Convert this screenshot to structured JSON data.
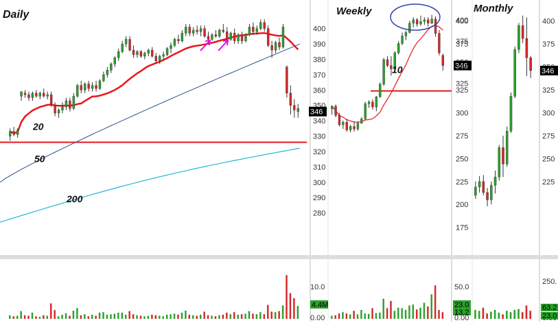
{
  "colors": {
    "up": "#2ca02c",
    "down": "#d62728",
    "ma_red": "#e8151b",
    "ma_blue": "#2b4f8a",
    "ma_cyan": "#26b6d6",
    "support": "#e8151b",
    "arrow": "#e010e0",
    "ellipse": "#2d3fa8"
  },
  "chart_data": [
    {
      "type": "candlestick",
      "title": "Daily",
      "y_ticks": [
        280,
        290,
        300,
        310,
        320,
        330,
        340,
        350,
        360,
        370,
        380,
        390,
        400
      ],
      "ylim": [
        270,
        407
      ],
      "last_price_label": "346",
      "support_level": 326,
      "annotations": [
        {
          "text": "20",
          "x": 58,
          "y": 334
        },
        {
          "text": "50",
          "x": 58,
          "y": 313
        },
        {
          "text": "200",
          "x": 112,
          "y": 287
        }
      ],
      "candles": [
        {
          "o": 330,
          "h": 335,
          "l": 327,
          "c": 333
        },
        {
          "o": 333,
          "h": 336,
          "l": 330,
          "c": 331
        },
        {
          "o": 331,
          "h": 335,
          "l": 329,
          "c": 334
        },
        {
          "o": 356,
          "h": 358,
          "l": 353,
          "c": 359
        },
        {
          "o": 358,
          "h": 360,
          "l": 355,
          "c": 357
        },
        {
          "o": 357,
          "h": 359,
          "l": 353,
          "c": 355
        },
        {
          "o": 355,
          "h": 359,
          "l": 353,
          "c": 358
        },
        {
          "o": 358,
          "h": 360,
          "l": 355,
          "c": 356
        },
        {
          "o": 356,
          "h": 359,
          "l": 354,
          "c": 358
        },
        {
          "o": 358,
          "h": 361,
          "l": 355,
          "c": 356
        },
        {
          "o": 356,
          "h": 359,
          "l": 354,
          "c": 357
        },
        {
          "o": 357,
          "h": 359,
          "l": 349,
          "c": 351
        },
        {
          "o": 350,
          "h": 352,
          "l": 343,
          "c": 345
        },
        {
          "o": 345,
          "h": 348,
          "l": 342,
          "c": 347
        },
        {
          "o": 347,
          "h": 352,
          "l": 345,
          "c": 349
        },
        {
          "o": 349,
          "h": 355,
          "l": 347,
          "c": 353
        },
        {
          "o": 353,
          "h": 355,
          "l": 346,
          "c": 348
        },
        {
          "o": 348,
          "h": 358,
          "l": 347,
          "c": 356
        },
        {
          "o": 356,
          "h": 364,
          "l": 355,
          "c": 363
        },
        {
          "o": 363,
          "h": 366,
          "l": 358,
          "c": 360
        },
        {
          "o": 360,
          "h": 365,
          "l": 358,
          "c": 364
        },
        {
          "o": 364,
          "h": 366,
          "l": 359,
          "c": 361
        },
        {
          "o": 361,
          "h": 365,
          "l": 359,
          "c": 363
        },
        {
          "o": 363,
          "h": 366,
          "l": 359,
          "c": 361
        },
        {
          "o": 361,
          "h": 367,
          "l": 360,
          "c": 366
        },
        {
          "o": 366,
          "h": 372,
          "l": 365,
          "c": 370
        },
        {
          "o": 370,
          "h": 375,
          "l": 368,
          "c": 373
        },
        {
          "o": 373,
          "h": 378,
          "l": 371,
          "c": 377
        },
        {
          "o": 377,
          "h": 382,
          "l": 375,
          "c": 381
        },
        {
          "o": 381,
          "h": 387,
          "l": 379,
          "c": 385
        },
        {
          "o": 385,
          "h": 392,
          "l": 384,
          "c": 390
        },
        {
          "o": 390,
          "h": 395,
          "l": 388,
          "c": 393
        },
        {
          "o": 393,
          "h": 395,
          "l": 385,
          "c": 386
        },
        {
          "o": 386,
          "h": 389,
          "l": 381,
          "c": 383
        },
        {
          "o": 383,
          "h": 386,
          "l": 381,
          "c": 385
        },
        {
          "o": 385,
          "h": 386,
          "l": 381,
          "c": 382
        },
        {
          "o": 382,
          "h": 385,
          "l": 380,
          "c": 384
        },
        {
          "o": 384,
          "h": 387,
          "l": 382,
          "c": 386
        },
        {
          "o": 386,
          "h": 388,
          "l": 381,
          "c": 382
        },
        {
          "o": 382,
          "h": 384,
          "l": 377,
          "c": 379
        },
        {
          "o": 379,
          "h": 383,
          "l": 377,
          "c": 382
        },
        {
          "o": 382,
          "h": 385,
          "l": 380,
          "c": 383
        },
        {
          "o": 383,
          "h": 388,
          "l": 382,
          "c": 387
        },
        {
          "o": 387,
          "h": 391,
          "l": 384,
          "c": 389
        },
        {
          "o": 389,
          "h": 394,
          "l": 388,
          "c": 393
        },
        {
          "o": 393,
          "h": 396,
          "l": 390,
          "c": 392
        },
        {
          "o": 392,
          "h": 399,
          "l": 391,
          "c": 397
        },
        {
          "o": 397,
          "h": 403,
          "l": 395,
          "c": 401
        },
        {
          "o": 401,
          "h": 403,
          "l": 395,
          "c": 397
        },
        {
          "o": 397,
          "h": 401,
          "l": 395,
          "c": 399
        },
        {
          "o": 399,
          "h": 402,
          "l": 396,
          "c": 398
        },
        {
          "o": 398,
          "h": 402,
          "l": 395,
          "c": 400
        },
        {
          "o": 400,
          "h": 402,
          "l": 394,
          "c": 395
        },
        {
          "o": 395,
          "h": 398,
          "l": 391,
          "c": 393
        },
        {
          "o": 393,
          "h": 397,
          "l": 392,
          "c": 396
        },
        {
          "o": 396,
          "h": 399,
          "l": 394,
          "c": 395
        },
        {
          "o": 395,
          "h": 400,
          "l": 394,
          "c": 399
        },
        {
          "o": 399,
          "h": 403,
          "l": 397,
          "c": 398
        },
        {
          "o": 398,
          "h": 401,
          "l": 391,
          "c": 393
        },
        {
          "o": 393,
          "h": 398,
          "l": 392,
          "c": 397
        },
        {
          "o": 397,
          "h": 400,
          "l": 390,
          "c": 392
        },
        {
          "o": 392,
          "h": 397,
          "l": 390,
          "c": 396
        },
        {
          "o": 396,
          "h": 398,
          "l": 390,
          "c": 392
        },
        {
          "o": 392,
          "h": 397,
          "l": 391,
          "c": 396
        },
        {
          "o": 396,
          "h": 403,
          "l": 395,
          "c": 401
        },
        {
          "o": 401,
          "h": 404,
          "l": 396,
          "c": 398
        },
        {
          "o": 398,
          "h": 402,
          "l": 396,
          "c": 400
        },
        {
          "o": 400,
          "h": 406,
          "l": 399,
          "c": 404
        },
        {
          "o": 404,
          "h": 406,
          "l": 398,
          "c": 400
        },
        {
          "o": 400,
          "h": 402,
          "l": 388,
          "c": 389
        },
        {
          "o": 389,
          "h": 392,
          "l": 381,
          "c": 386
        },
        {
          "o": 386,
          "h": 392,
          "l": 384,
          "c": 391
        },
        {
          "o": 391,
          "h": 394,
          "l": 386,
          "c": 388
        },
        {
          "o": 388,
          "h": 403,
          "l": 387,
          "c": 401
        },
        {
          "o": 375,
          "h": 376,
          "l": 355,
          "c": 358
        },
        {
          "o": 358,
          "h": 363,
          "l": 344,
          "c": 350
        },
        {
          "o": 350,
          "h": 354,
          "l": 342,
          "c": 347
        },
        {
          "o": 346,
          "h": 351,
          "l": 342,
          "c": 348
        }
      ],
      "volume_y_ticks": [],
      "volume": [
        0.07,
        0.05,
        0.06,
        0.15,
        0.07,
        0.06,
        0.12,
        0.05,
        0.04,
        0.07,
        0.06,
        0.3,
        0.17,
        0.05,
        0.08,
        0.11,
        0.06,
        0.16,
        0.21,
        0.07,
        0.09,
        0.05,
        0.08,
        0.06,
        0.12,
        0.13,
        0.08,
        0.09,
        0.1,
        0.12,
        0.12,
        0.08,
        0.15,
        0.09,
        0.07,
        0.06,
        0.05,
        0.06,
        0.08,
        0.07,
        0.06,
        0.05,
        0.08,
        0.09,
        0.1,
        0.08,
        0.12,
        0.16,
        0.08,
        0.07,
        0.06,
        0.08,
        0.14,
        0.07,
        0.06,
        0.05,
        0.07,
        0.08,
        0.12,
        0.09,
        0.13,
        0.08,
        0.09,
        0.1,
        0.15,
        0.1,
        0.09,
        0.13,
        0.09,
        0.27,
        0.14,
        0.13,
        0.15,
        0.26,
        0.85,
        0.5,
        0.4,
        0.25
      ]
    },
    {
      "type": "candlestick",
      "title": "Weekly",
      "y_ticks": [
        325,
        350,
        375,
        400
      ],
      "ylim": [
        140,
        408
      ],
      "last_price_label": "346",
      "support_level": 316,
      "annotations": [
        {
          "text": "10",
          "x": 2,
          "y": 337
        }
      ],
      "candles": [
        {
          "o": 295,
          "h": 299,
          "l": 288,
          "c": 298
        },
        {
          "o": 298,
          "h": 300,
          "l": 285,
          "c": 287
        },
        {
          "o": 287,
          "h": 290,
          "l": 274,
          "c": 276
        },
        {
          "o": 276,
          "h": 281,
          "l": 271,
          "c": 279
        },
        {
          "o": 279,
          "h": 283,
          "l": 268,
          "c": 270
        },
        {
          "o": 270,
          "h": 276,
          "l": 267,
          "c": 274
        },
        {
          "o": 274,
          "h": 280,
          "l": 268,
          "c": 271
        },
        {
          "o": 271,
          "h": 280,
          "l": 269,
          "c": 278
        },
        {
          "o": 278,
          "h": 285,
          "l": 277,
          "c": 283
        },
        {
          "o": 283,
          "h": 303,
          "l": 282,
          "c": 301
        },
        {
          "o": 301,
          "h": 305,
          "l": 296,
          "c": 303
        },
        {
          "o": 303,
          "h": 306,
          "l": 294,
          "c": 297
        },
        {
          "o": 297,
          "h": 310,
          "l": 292,
          "c": 309
        },
        {
          "o": 309,
          "h": 326,
          "l": 308,
          "c": 324
        },
        {
          "o": 324,
          "h": 355,
          "l": 322,
          "c": 353
        },
        {
          "o": 353,
          "h": 357,
          "l": 344,
          "c": 346
        },
        {
          "o": 346,
          "h": 357,
          "l": 334,
          "c": 342
        },
        {
          "o": 342,
          "h": 363,
          "l": 340,
          "c": 361
        },
        {
          "o": 361,
          "h": 375,
          "l": 359,
          "c": 372
        },
        {
          "o": 372,
          "h": 385,
          "l": 370,
          "c": 381
        },
        {
          "o": 381,
          "h": 387,
          "l": 376,
          "c": 385
        },
        {
          "o": 385,
          "h": 399,
          "l": 384,
          "c": 396
        },
        {
          "o": 396,
          "h": 403,
          "l": 391,
          "c": 400
        },
        {
          "o": 400,
          "h": 402,
          "l": 392,
          "c": 395
        },
        {
          "o": 395,
          "h": 405,
          "l": 393,
          "c": 398
        },
        {
          "o": 398,
          "h": 403,
          "l": 394,
          "c": 400
        },
        {
          "o": 400,
          "h": 403,
          "l": 392,
          "c": 396
        },
        {
          "o": 396,
          "h": 406,
          "l": 395,
          "c": 401
        },
        {
          "o": 401,
          "h": 404,
          "l": 380,
          "c": 384
        },
        {
          "o": 384,
          "h": 388,
          "l": 358,
          "c": 361
        },
        {
          "o": 358,
          "h": 360,
          "l": 340,
          "c": 346
        }
      ],
      "volume_y_ticks": [
        "10.0",
        "0.00"
      ],
      "volume_badge": "4.4M",
      "volume": [
        0.07,
        0.08,
        0.12,
        0.15,
        0.12,
        0.1,
        0.18,
        0.1,
        0.2,
        0.12,
        0.11,
        0.24,
        0.13,
        0.14,
        0.45,
        0.24,
        0.4,
        0.18,
        0.25,
        0.24,
        0.2,
        0.3,
        0.32,
        0.21,
        0.25,
        0.36,
        0.28,
        0.55,
        0.75,
        0.2,
        0.15
      ]
    },
    {
      "type": "candlestick",
      "title": "Monthly",
      "y_ticks": [
        175,
        200,
        225,
        250,
        275,
        300,
        325,
        350,
        375,
        400
      ],
      "right_y_ticks": [
        225,
        250,
        275,
        300,
        325,
        350,
        375,
        400
      ],
      "ylim": [
        165,
        408
      ],
      "last_price_label": "346",
      "candles": [
        {
          "o": 210,
          "h": 225,
          "l": 206,
          "c": 219
        },
        {
          "o": 219,
          "h": 231,
          "l": 213,
          "c": 225
        },
        {
          "o": 225,
          "h": 232,
          "l": 210,
          "c": 213
        },
        {
          "o": 213,
          "h": 218,
          "l": 198,
          "c": 205
        },
        {
          "o": 205,
          "h": 225,
          "l": 200,
          "c": 221
        },
        {
          "o": 221,
          "h": 237,
          "l": 212,
          "c": 230
        },
        {
          "o": 230,
          "h": 265,
          "l": 226,
          "c": 262
        },
        {
          "o": 262,
          "h": 275,
          "l": 230,
          "c": 244
        },
        {
          "o": 244,
          "h": 285,
          "l": 241,
          "c": 280
        },
        {
          "o": 280,
          "h": 322,
          "l": 278,
          "c": 318
        },
        {
          "o": 318,
          "h": 372,
          "l": 316,
          "c": 369
        },
        {
          "o": 369,
          "h": 398,
          "l": 365,
          "c": 395
        },
        {
          "o": 395,
          "h": 406,
          "l": 376,
          "c": 381
        },
        {
          "o": 381,
          "h": 404,
          "l": 340,
          "c": 360
        },
        {
          "o": 360,
          "h": 362,
          "l": 338,
          "c": 346
        }
      ],
      "volume_y_ticks": [
        "50.0",
        "0.00"
      ],
      "volume_badge": "23.0",
      "volume_badge2": "13.2",
      "right_volume_ticks": [
        "250.",
        "0.00"
      ],
      "right_volume_badge": "63.2",
      "right_volume_badge2": "23.0",
      "volume": [
        0.2,
        0.18,
        0.25,
        0.12,
        0.16,
        0.2,
        0.14,
        0.1,
        0.18,
        0.15,
        0.2,
        0.22,
        0.15,
        0.3,
        0.18
      ]
    }
  ]
}
